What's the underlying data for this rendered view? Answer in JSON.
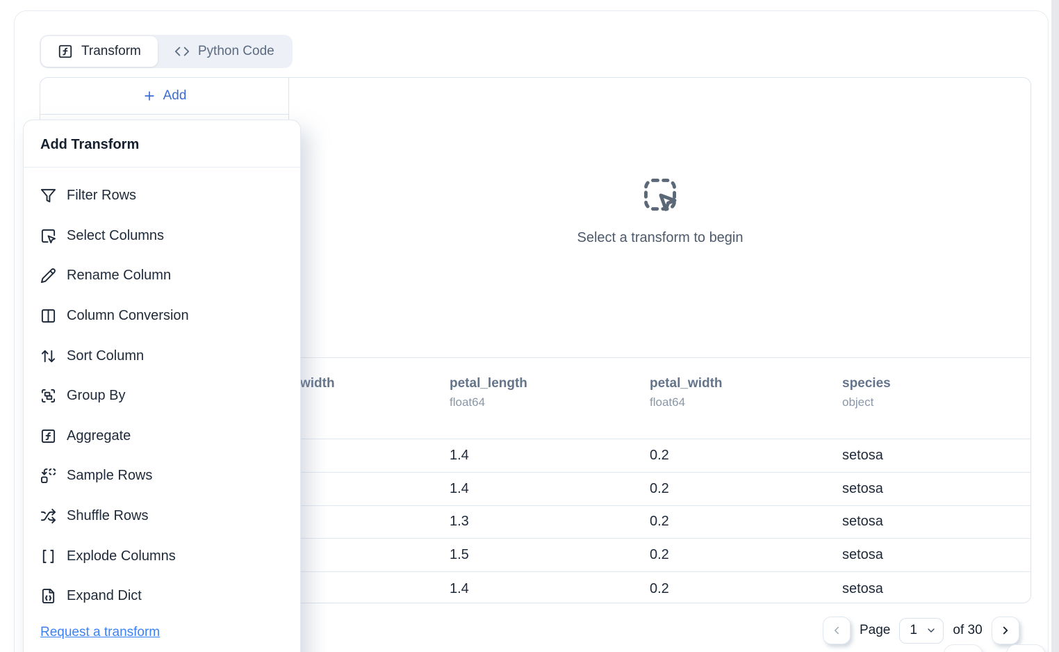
{
  "tabs": {
    "transform": "Transform",
    "python_code": "Python Code"
  },
  "left_panel": {
    "add_label": "Add"
  },
  "menu": {
    "title": "Add Transform",
    "items": [
      {
        "icon": "filter-icon",
        "label": "Filter Rows"
      },
      {
        "icon": "select-columns-icon",
        "label": "Select Columns"
      },
      {
        "icon": "pencil-icon",
        "label": "Rename Column"
      },
      {
        "icon": "columns-icon",
        "label": "Column Conversion"
      },
      {
        "icon": "arrow-up-down-icon",
        "label": "Sort Column"
      },
      {
        "icon": "group-icon",
        "label": "Group By"
      },
      {
        "icon": "function-square-icon",
        "label": "Aggregate"
      },
      {
        "icon": "replace-icon",
        "label": "Sample Rows"
      },
      {
        "icon": "shuffle-icon",
        "label": "Shuffle Rows"
      },
      {
        "icon": "brackets-icon",
        "label": "Explode Columns"
      },
      {
        "icon": "file-json-icon",
        "label": "Expand Dict"
      }
    ],
    "request_link": "Request a transform"
  },
  "empty_state": {
    "message": "Select a transform to begin"
  },
  "table": {
    "columns": [
      {
        "label": "width",
        "dtype": ""
      },
      {
        "label": "petal_length",
        "dtype": "float64"
      },
      {
        "label": "petal_width",
        "dtype": "float64"
      },
      {
        "label": "species",
        "dtype": "object"
      }
    ],
    "rows": [
      [
        "",
        "1.4",
        "0.2",
        "setosa"
      ],
      [
        "",
        "1.4",
        "0.2",
        "setosa"
      ],
      [
        "",
        "1.3",
        "0.2",
        "setosa"
      ],
      [
        "",
        "1.5",
        "0.2",
        "setosa"
      ],
      [
        "",
        "1.4",
        "0.2",
        "setosa"
      ]
    ]
  },
  "pagination": {
    "page_label": "Page",
    "current_page": "1",
    "total_label": "of 30"
  },
  "colors": {
    "accent_blue": "#3b6cd4",
    "link_blue": "#3b82f6",
    "text_dark": "#1e2939",
    "muted_slate": "#64748b"
  }
}
